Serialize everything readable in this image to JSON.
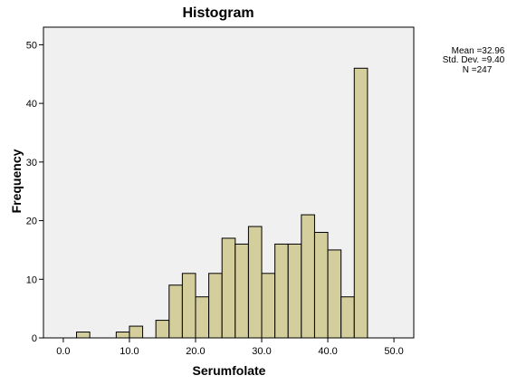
{
  "chart_data": {
    "type": "bar",
    "title": "Histogram",
    "xlabel": "Serumfolate",
    "ylabel": "Frequency",
    "xlim": [
      -3,
      53
    ],
    "ylim": [
      0,
      53
    ],
    "bin_width": 2,
    "x_ticks": [
      0,
      10,
      20,
      30,
      40,
      50
    ],
    "x_tick_labels": [
      "0.0",
      "10.0",
      "20.0",
      "30.0",
      "40.0",
      "50.0"
    ],
    "y_ticks": [
      0,
      10,
      20,
      30,
      40,
      50
    ],
    "y_tick_labels": [
      "0",
      "10",
      "20",
      "30",
      "40",
      "50"
    ],
    "bins": [
      {
        "start": 2,
        "end": 4,
        "count": 1
      },
      {
        "start": 8,
        "end": 10,
        "count": 1
      },
      {
        "start": 10,
        "end": 12,
        "count": 2
      },
      {
        "start": 14,
        "end": 16,
        "count": 3
      },
      {
        "start": 16,
        "end": 18,
        "count": 9
      },
      {
        "start": 18,
        "end": 20,
        "count": 11
      },
      {
        "start": 20,
        "end": 22,
        "count": 7
      },
      {
        "start": 22,
        "end": 24,
        "count": 11
      },
      {
        "start": 24,
        "end": 26,
        "count": 17
      },
      {
        "start": 26,
        "end": 28,
        "count": 16
      },
      {
        "start": 28,
        "end": 30,
        "count": 19
      },
      {
        "start": 30,
        "end": 32,
        "count": 11
      },
      {
        "start": 32,
        "end": 34,
        "count": 16
      },
      {
        "start": 34,
        "end": 36,
        "count": 16
      },
      {
        "start": 36,
        "end": 38,
        "count": 21
      },
      {
        "start": 38,
        "end": 40,
        "count": 18
      },
      {
        "start": 40,
        "end": 42,
        "count": 15
      },
      {
        "start": 42,
        "end": 44,
        "count": 7
      },
      {
        "start": 44,
        "end": 46,
        "count": 46
      }
    ],
    "stats": {
      "mean": "Mean =32.96",
      "std": "Std. Dev. =9.40",
      "n": "N =247"
    },
    "colors": {
      "bar_fill": "#d3ce9c",
      "plot_background": "#f0f0f0",
      "bar_edge": "#000000"
    },
    "grid": false,
    "legend": "none"
  }
}
